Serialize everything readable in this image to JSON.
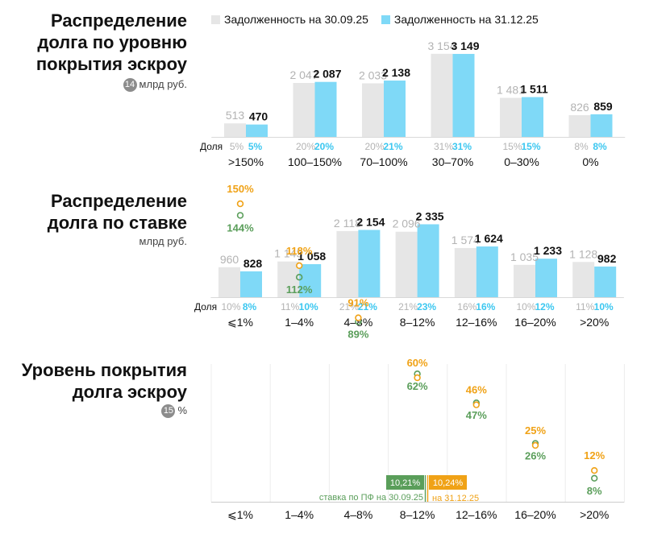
{
  "legend": {
    "a_label": "Задолженность на 30.09.25",
    "b_label": "Задолженность на 31.12.25",
    "a_color": "#e6e6e6",
    "b_color": "#7fd9f7"
  },
  "colors": {
    "label_old": "#b3b3b3",
    "label_new": "#111111",
    "share_new": "#3cc7f0",
    "rate_old": "#5a9e5a",
    "rate_new": "#f0a216",
    "dot": "#f0a216"
  },
  "blocks": {
    "b1": {
      "title": "Распределение долга по уровню покрытия эскроу",
      "footnote": "14",
      "unit": "млрд руб."
    },
    "b2": {
      "title": "Распределение долга по ставке",
      "unit": "млрд руб."
    },
    "b3": {
      "title": "Уровень покрытия долга эскроу",
      "footnote": "15",
      "unit": "%"
    }
  },
  "chart_data": [
    {
      "type": "bar",
      "categories": [
        ">150%",
        "100–150%",
        "70–100%",
        "30–70%",
        "0–30%",
        "0%"
      ],
      "series": [
        {
          "name": "Задолженность на 30.09.25",
          "values": [
            513,
            2047,
            2033,
            3154,
            1481,
            826
          ],
          "labels": [
            "513",
            "2 047",
            "2 033",
            "3 154",
            "1 481",
            "826"
          ]
        },
        {
          "name": "Задолженность на 31.12.25",
          "values": [
            470,
            2087,
            2138,
            3149,
            1511,
            859
          ],
          "labels": [
            "470",
            "2 087",
            "2 138",
            "3 149",
            "1 511",
            "859"
          ]
        }
      ],
      "share_label": "Доля",
      "shares_old": [
        "5%",
        "20%",
        "20%",
        "31%",
        "15%",
        "8%"
      ],
      "shares_new": [
        "5%",
        "20%",
        "21%",
        "31%",
        "15%",
        "8%"
      ],
      "ylim": [
        0,
        3300
      ]
    },
    {
      "type": "bar",
      "categories": [
        "⩽1%",
        "1–4%",
        "4–8%",
        "8–12%",
        "12–16%",
        "16–20%",
        ">20%"
      ],
      "series": [
        {
          "name": "Задолженность на 30.09.25",
          "values": [
            960,
            1143,
            2118,
            2096,
            1574,
            1035,
            1128
          ],
          "labels": [
            "960",
            "1 143",
            "2 118",
            "2 096",
            "1 574",
            "1 035",
            "1 128"
          ]
        },
        {
          "name": "Задолженность на 31.12.25",
          "values": [
            828,
            1058,
            2154,
            2335,
            1624,
            1233,
            982
          ],
          "labels": [
            "828",
            "1 058",
            "2 154",
            "2 335",
            "1 624",
            "1 233",
            "982"
          ]
        }
      ],
      "share_label": "Доля",
      "shares_old": [
        "10%",
        "11%",
        "21%",
        "21%",
        "16%",
        "10%",
        "11%"
      ],
      "shares_new": [
        "8%",
        "10%",
        "21%",
        "23%",
        "16%",
        "12%",
        "10%"
      ],
      "ylim": [
        0,
        2450
      ]
    },
    {
      "type": "scatter",
      "categories": [
        "⩽1%",
        "1–4%",
        "4–8%",
        "8–12%",
        "12–16%",
        "16–20%",
        ">20%"
      ],
      "series": [
        {
          "name": "30.09.25",
          "values": [
            144,
            112,
            89,
            62,
            47,
            26,
            8
          ],
          "labels": [
            "144%",
            "112%",
            "89%",
            "62%",
            "47%",
            "26%",
            "8%"
          ]
        },
        {
          "name": "31.12.25",
          "values": [
            150,
            118,
            91,
            60,
            46,
            25,
            12
          ],
          "labels": [
            "150%",
            "118%",
            "91%",
            "60%",
            "46%",
            "25%",
            "12%"
          ]
        }
      ],
      "annotations": [
        {
          "tag": "10,21%",
          "text": "ставка по ПФ на 30.09.25",
          "color": "#5a9e5a"
        },
        {
          "tag": "10,24%",
          "text": "на 31.12.25",
          "color": "#f0a216"
        }
      ],
      "ylim": [
        0,
        160
      ]
    }
  ]
}
